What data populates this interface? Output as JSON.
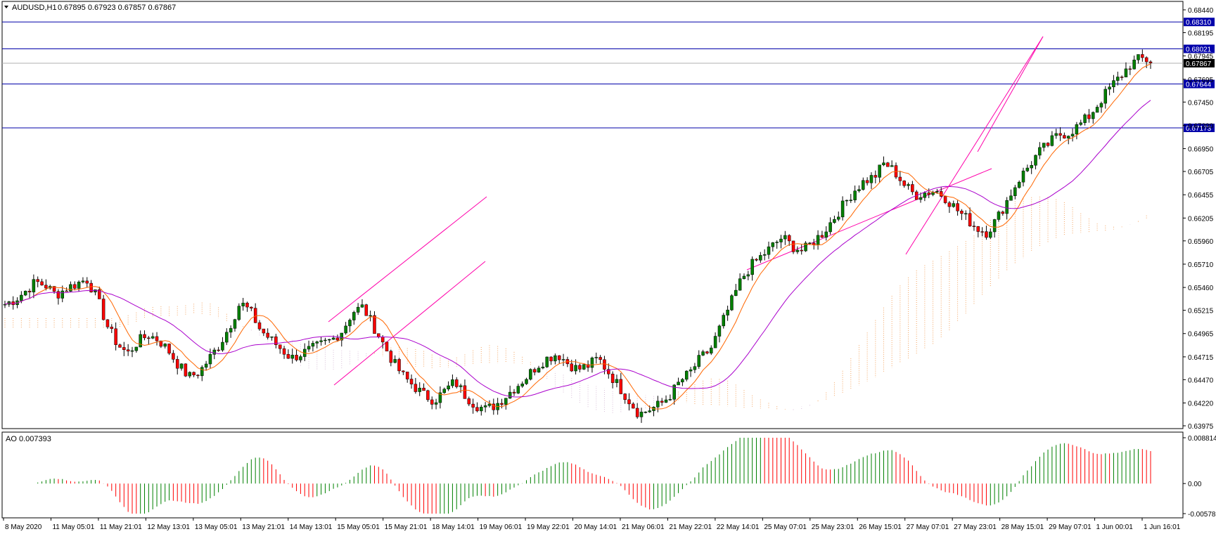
{
  "symbol_header": {
    "title": "AUDUSD,H1",
    "ohlc": "0.67895 0.67923 0.67857 0.67867"
  },
  "indicator": {
    "label": "AO 0.007393"
  },
  "colors": {
    "bull": "#008000",
    "bear": "#ff0000",
    "hline": "#0000aa",
    "ma_fast": "#ff6600",
    "ma_slow": "#aa00cc",
    "trend": "#ff00aa",
    "cloud_a": "#f4a460",
    "cloud_b": "#d8bfd8",
    "current_price_bg": "#000000"
  },
  "chart_data": [
    {
      "type": "candlestick",
      "title": "AUDUSD,H1",
      "ylim": [
        0.63975,
        0.6844
      ],
      "y_ticks": [
        "0.68440",
        "0.68195",
        "0.67945",
        "0.67695",
        "0.67450",
        "0.67200",
        "0.66950",
        "0.66705",
        "0.66455",
        "0.66205",
        "0.65960",
        "0.65710",
        "0.65460",
        "0.65215",
        "0.64965",
        "0.64715",
        "0.64470",
        "0.64220",
        "0.63975"
      ],
      "x_ticks": [
        "8 May 2020",
        "11 May 05:01",
        "11 May 21:01",
        "12 May 13:01",
        "13 May 05:01",
        "13 May 21:01",
        "14 May 13:01",
        "15 May 05:01",
        "15 May 21:01",
        "18 May 14:01",
        "19 May 06:01",
        "19 May 22:01",
        "20 May 14:01",
        "21 May 06:01",
        "21 May 22:01",
        "22 May 14:01",
        "25 May 07:01",
        "25 May 23:01",
        "26 May 15:01",
        "27 May 07:01",
        "27 May 23:01",
        "28 May 15:01",
        "29 May 07:01",
        "1 Jun 00:01",
        "1 Jun 16:01"
      ],
      "price_path": [
        0.6528,
        0.6533,
        0.6542,
        0.6552,
        0.6548,
        0.6538,
        0.6545,
        0.655,
        0.6555,
        0.6535,
        0.6505,
        0.6485,
        0.6475,
        0.6488,
        0.6495,
        0.649,
        0.6478,
        0.6462,
        0.645,
        0.6455,
        0.647,
        0.6485,
        0.6505,
        0.653,
        0.652,
        0.65,
        0.649,
        0.648,
        0.647,
        0.6475,
        0.648,
        0.6485,
        0.649,
        0.65,
        0.652,
        0.6525,
        0.6505,
        0.6485,
        0.6465,
        0.645,
        0.644,
        0.643,
        0.6425,
        0.6435,
        0.6445,
        0.643,
        0.642,
        0.6415,
        0.642,
        0.643,
        0.644,
        0.645,
        0.6462,
        0.647,
        0.6475,
        0.6465,
        0.6458,
        0.6462,
        0.647,
        0.6455,
        0.644,
        0.6425,
        0.641,
        0.6415,
        0.642,
        0.643,
        0.6445,
        0.6455,
        0.647,
        0.648,
        0.6505,
        0.653,
        0.6555,
        0.657,
        0.658,
        0.659,
        0.66,
        0.659,
        0.6585,
        0.6595,
        0.6605,
        0.662,
        0.6635,
        0.665,
        0.666,
        0.6665,
        0.668,
        0.667,
        0.6655,
        0.6645,
        0.6648,
        0.665,
        0.6642,
        0.663,
        0.662,
        0.661,
        0.6605,
        0.662,
        0.664,
        0.666,
        0.6675,
        0.669,
        0.67,
        0.671,
        0.6712,
        0.672,
        0.673,
        0.6745,
        0.676,
        0.6772,
        0.6785,
        0.6792,
        0.6789
      ],
      "horizontal_levels": [
        {
          "label": "0.68310",
          "price": 0.6831
        },
        {
          "label": "0.68021",
          "price": 0.68021
        },
        {
          "label": "0.67644",
          "price": 0.67644
        },
        {
          "label": "0.67173",
          "price": 0.67173
        }
      ],
      "current_price": {
        "label": "0.67867",
        "price": 0.67867
      }
    },
    {
      "type": "bar",
      "title": "AO 0.007393",
      "ylim": [
        -0.005786,
        0.008814
      ],
      "y_ticks": [
        "0.008814",
        "0.00",
        "-0.005786"
      ]
    }
  ]
}
